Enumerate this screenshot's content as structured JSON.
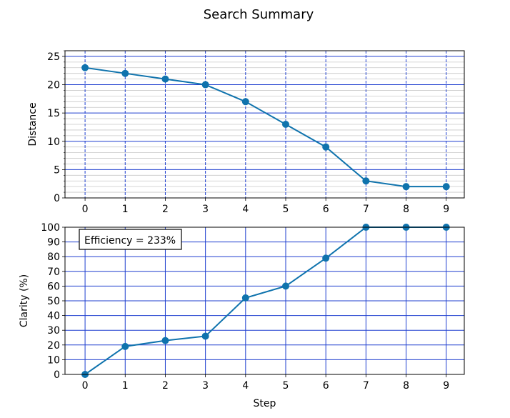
{
  "figure": {
    "title": "Search Summary"
  },
  "colors": {
    "series": "#0f73ad",
    "grid_major": "#1f3fcf",
    "grid_minor": "#c8c8c8",
    "axes": "#000000",
    "background": "#ffffff"
  },
  "chart_data": [
    {
      "type": "line",
      "title": "",
      "xlabel": "",
      "ylabel": "Distance",
      "x": [
        0,
        1,
        2,
        3,
        4,
        5,
        6,
        7,
        8,
        9
      ],
      "series": [
        {
          "values": [
            23,
            22,
            21,
            20,
            17,
            13,
            9,
            3,
            2,
            2
          ]
        }
      ],
      "xlim": [
        -0.5,
        9.45
      ],
      "ylim": [
        0,
        26
      ],
      "xticks": [
        "0",
        "1",
        "2",
        "3",
        "4",
        "5",
        "6",
        "7",
        "8",
        "9"
      ],
      "yticks": [
        "0",
        "5",
        "10",
        "15",
        "20",
        "25"
      ],
      "xtick_values": [
        0,
        1,
        2,
        3,
        4,
        5,
        6,
        7,
        8,
        9
      ],
      "ytick_values": [
        0,
        5,
        10,
        15,
        20,
        25
      ],
      "grid": true,
      "x_grid_style": "dashed",
      "minor_y_grid_step": 1,
      "annotation": ""
    },
    {
      "type": "line",
      "title": "",
      "xlabel": "Step",
      "ylabel": "Clarity (%)",
      "x": [
        0,
        1,
        2,
        3,
        4,
        5,
        6,
        7,
        8,
        9
      ],
      "series": [
        {
          "values": [
            0,
            19,
            23,
            26,
            52,
            60,
            79,
            100,
            100,
            100
          ]
        }
      ],
      "xlim": [
        -0.5,
        9.45
      ],
      "ylim": [
        0,
        100
      ],
      "xticks": [
        "0",
        "1",
        "2",
        "3",
        "4",
        "5",
        "6",
        "7",
        "8",
        "9"
      ],
      "yticks": [
        "0",
        "10",
        "20",
        "30",
        "40",
        "50",
        "60",
        "70",
        "80",
        "90",
        "100"
      ],
      "xtick_values": [
        0,
        1,
        2,
        3,
        4,
        5,
        6,
        7,
        8,
        9
      ],
      "ytick_values": [
        0,
        10,
        20,
        30,
        40,
        50,
        60,
        70,
        80,
        90,
        100
      ],
      "grid": true,
      "x_grid_style": "solid",
      "minor_y_grid_step": 0,
      "annotation": "Efficiency = 233%",
      "annotation_placement": "top-left"
    }
  ]
}
